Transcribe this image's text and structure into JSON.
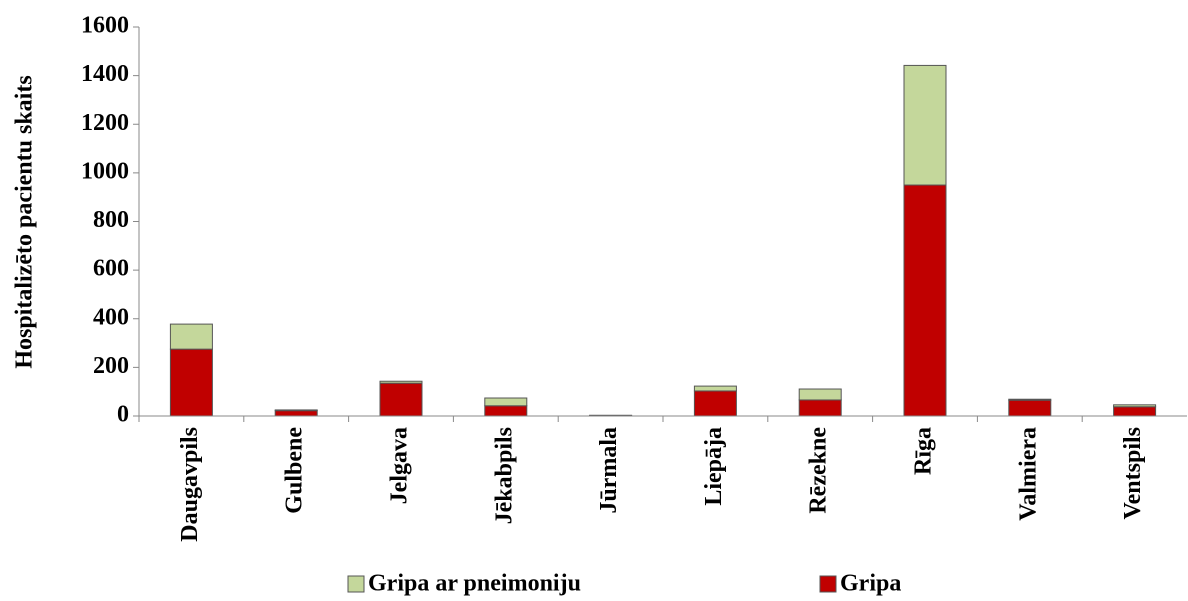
{
  "chart_data": {
    "type": "stacked-bar",
    "y_label": "Hospitalizēto pacientu skaits",
    "categories": [
      "Daugavpils",
      "Gulbene",
      "Jelgava",
      "Jēkabpils",
      "Jūrmala",
      "Liepāja",
      "Rēzekne",
      "Rīga",
      "Valmiera",
      "Ventspils"
    ],
    "series": [
      {
        "name": "Gripa ar pneimoniju",
        "color": "#c4d79b",
        "values": [
          103,
          3,
          8,
          32,
          1,
          20,
          45,
          492,
          4,
          8
        ]
      },
      {
        "name": "Gripa",
        "color": "#c00000",
        "values": [
          275,
          22,
          135,
          42,
          2,
          103,
          66,
          950,
          65,
          38
        ]
      }
    ],
    "ylim": [
      0,
      1600
    ],
    "yticks": [
      0,
      200,
      400,
      600,
      800,
      1000,
      1200,
      1400,
      1600
    ],
    "grid": false
  }
}
